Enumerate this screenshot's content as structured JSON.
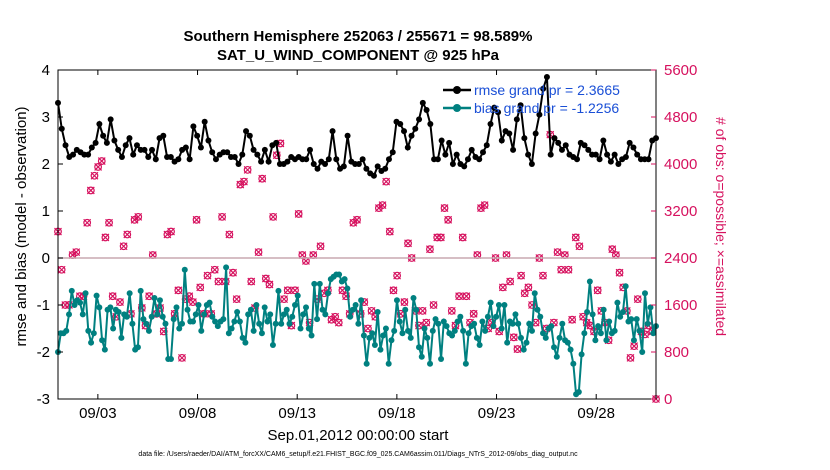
{
  "title_line1": "Southern Hemisphere 252063 / 255671 = 98.589%",
  "title_line2": "SAT_U_WIND_COMPONENT @ 925 hPa",
  "footnote": "data file: /Users/raeder/DAI/ATM_forcXX/CAM6_setup/f.e21.FHIST_BGC.f09_025.CAM6assim.011/Diags_NTrS_2012-09/obs_diag_output.nc",
  "chart_data": {
    "type": "line",
    "xlabel": "Sep.01,2012 00:00:00 start",
    "ylabel_left": "rmse and bias (model - observation)",
    "ylabel_right": "# of obs: o=possible; ×=assimilated",
    "xlim": [
      0,
      30
    ],
    "ylim_left": [
      -3,
      4
    ],
    "ylim_right": [
      0,
      5600
    ],
    "x_ticks": [
      2,
      7,
      12,
      17,
      22,
      27
    ],
    "x_tick_labels": [
      "09/03",
      "09/08",
      "09/13",
      "09/18",
      "09/23",
      "09/28"
    ],
    "y_left_ticks": [
      -3,
      -2,
      -1,
      0,
      1,
      2,
      3,
      4
    ],
    "y_right_ticks": [
      0,
      800,
      1600,
      2400,
      3200,
      4000,
      4800,
      5600
    ],
    "y_right_tick_labels": [
      "0",
      "800",
      "1600",
      "2400",
      "3200",
      "4000",
      "4800",
      "5600"
    ],
    "zero_line": 0,
    "grid": false,
    "legend_position": "top-right",
    "colors": {
      "rmse": "#000000",
      "bias": "#008080",
      "obs": "#d6115e",
      "legend_text": "#1a4fd6",
      "zero_line": "#c8a9b0"
    },
    "series": [
      {
        "name": "rmse grand pr = 2.3665",
        "axis": "left",
        "values": [
          3.3,
          2.75,
          2.4,
          2.15,
          2.2,
          2.3,
          2.25,
          2.2,
          2.2,
          2.35,
          2.45,
          2.85,
          2.6,
          2.45,
          2.95,
          2.5,
          2.3,
          2.15,
          2.4,
          2.55,
          2.2,
          2.4,
          2.3,
          2.3,
          2.15,
          2.3,
          2.1,
          2.55,
          2.6,
          2.15,
          2.15,
          2.05,
          2.1,
          2.3,
          2.35,
          2.1,
          2.8,
          2.6,
          2.35,
          2.9,
          2.5,
          2.25,
          2.1,
          2.2,
          2.25,
          2.25,
          2.15,
          2.15,
          2.0,
          2.2,
          2.7,
          2.6,
          2.3,
          2.2,
          2.05,
          2.3,
          2.05,
          2.4,
          2.45,
          2.0,
          2.0,
          2.05,
          2.15,
          2.1,
          2.15,
          2.1,
          2.1,
          2.3,
          2.0,
          1.9,
          2.05,
          2.0,
          2.1,
          2.7,
          2.1,
          1.9,
          1.95,
          2.6,
          2.05,
          2.0,
          2.0,
          2.1,
          1.9,
          1.8,
          1.75,
          1.95,
          1.85,
          1.9,
          2.1,
          2.25,
          2.9,
          2.85,
          2.7,
          2.35,
          2.6,
          2.75,
          2.95,
          3.3,
          3.15,
          2.85,
          2.1,
          2.1,
          2.5,
          2.2,
          2.45,
          2.0,
          2.2,
          2.0,
          1.95,
          2.1,
          2.3,
          2.15,
          2.1,
          2.25,
          2.4,
          2.85,
          3.2,
          3.1,
          2.5,
          2.7,
          2.65,
          2.3,
          2.95,
          3.25,
          2.55,
          2.2,
          2.0,
          2.65,
          3.05,
          3.6,
          3.85,
          2.2,
          2.55,
          2.45,
          2.3,
          2.4,
          2.2,
          2.15,
          2.1,
          2.45,
          2.4,
          2.3,
          2.2,
          2.2,
          2.1,
          2.5,
          2.2,
          2.05,
          2.2,
          2.0,
          2.1,
          2.15,
          2.45,
          2.35,
          2.2,
          2.1,
          2.1,
          2.1,
          2.5,
          2.55
        ]
      },
      {
        "name": "bias grand pr = -1.2256",
        "axis": "left",
        "values": [
          -2.0,
          -1.6,
          -1.6,
          -1.55,
          -1.2,
          -0.7,
          -1.0,
          -0.9,
          -0.95,
          -1.2,
          -0.75,
          -1.55,
          -1.8,
          -1.6,
          -0.8,
          -1.05,
          -1.75,
          -1.95,
          -1.1,
          -1.05,
          -1.5,
          -1.1,
          -1.15,
          -1.7,
          -1.2,
          -1.25,
          -0.75,
          -1.4,
          -1.95,
          -1.9,
          -0.7,
          -1.3,
          -1.4,
          -1.55,
          -1.25,
          -0.85,
          -1.2,
          -0.9,
          -1.25,
          -1.4,
          -2.15,
          -2.15,
          -1.3,
          -1.05,
          -1.5,
          -1.4,
          -0.25,
          -1.1,
          -1.35,
          -1.35,
          -1.2,
          -1.0,
          -1.55,
          -1.2,
          -1.0,
          -0.95,
          -1.25,
          -1.35,
          -1.45,
          -1.35,
          -1.3,
          -0.2,
          -1.6,
          -1.5,
          -1.35,
          -1.15,
          -1.35,
          -1.7,
          -1.8,
          -1.2,
          -1.1,
          -1.55,
          -1.0,
          -1.4,
          -1.6,
          -1.05,
          -1.35,
          -1.2,
          -1.85,
          -1.4,
          -0.7,
          -1.4,
          -1.2,
          -1.1,
          -1.4,
          -1.25,
          -1.0,
          -0.8,
          -1.5,
          -1.2,
          -1.05,
          -1.5,
          -1.65,
          -0.55,
          -1.3,
          -0.55,
          -1.1,
          -1.2,
          -0.75,
          -0.45,
          -0.4,
          -0.35,
          -0.35,
          -0.5,
          -0.45,
          -0.65,
          -1.25,
          -1.1,
          -1.0,
          -1.4,
          -0.9,
          -1.65,
          -2.25,
          -1.7,
          -1.6,
          -1.85,
          -1.15,
          -1.95,
          -1.65,
          -1.5,
          -2.25,
          -1.75,
          -1.55,
          -0.9,
          -1.35,
          -1.6,
          -1.1,
          -1.55,
          -1.7,
          -0.85,
          -1.1,
          -1.9,
          -2.1,
          -1.5,
          -1.7,
          -2.25,
          -1.55,
          -1.3,
          -1.4,
          -2.15,
          -1.35,
          -1.45,
          -1.6,
          -1.65,
          -1.55,
          -1.35,
          -1.25,
          -1.55,
          -2.25,
          -1.6,
          -1.45,
          -1.4,
          -1.7,
          -1.85,
          -1.35,
          -1.55,
          -1.25,
          -0.95,
          -1.45,
          -1.25,
          -1.0,
          -1.5,
          -1.0,
          -1.8,
          -1.35,
          -1.4,
          -1.2,
          -1.4,
          -1.7,
          -1.95,
          -1.8,
          -1.4,
          -1.55,
          -0.75,
          -1.1,
          -1.25,
          -1.6,
          -1.7,
          -1.5,
          -1.45,
          -1.9,
          -2.1,
          -1.7,
          -1.4,
          -1.75,
          -1.8,
          -1.95,
          -2.25,
          -2.9,
          -2.85,
          -2.05,
          -1.6,
          -1.15,
          -0.5,
          -1.2,
          -1.75,
          -1.45,
          -1.6,
          -1.1,
          -1.75,
          -1.35,
          -1.6,
          -1.55,
          -0.95,
          -1.25,
          -1.15,
          -0.6,
          -1.35,
          -1.3,
          -1.75,
          -1.3,
          -1.55,
          -2.0,
          -0.75,
          -1.4,
          -1.05,
          -1.6,
          -1.45
        ]
      },
      {
        "name": "obs possible / assimilated",
        "axis": "right",
        "values": [
          2850,
          2200,
          1600,
          1600,
          2450,
          2500,
          1750,
          1750,
          3000,
          3550,
          3800,
          3950,
          4050,
          2750,
          3000,
          1750,
          1400,
          1650,
          2600,
          2800,
          1450,
          3050,
          3100,
          1550,
          1250,
          1750,
          2450,
          1450,
          1550,
          1150,
          2800,
          2850,
          1450,
          1850,
          700,
          1700,
          1750,
          1650,
          3050,
          1900,
          1450,
          2100,
          1450,
          2200,
          2000,
          3100,
          2000,
          2800,
          2150,
          1700,
          3650,
          3700,
          3900,
          2000,
          1550,
          2500,
          3750,
          2050,
          1950,
          3100,
          4150,
          4350,
          1700,
          1850,
          1250,
          1850,
          3150,
          2450,
          2350,
          1300,
          2450,
          1700,
          2600,
          1800,
          1850,
          1350,
          1400,
          1300,
          1850,
          1750,
          1450,
          3000,
          3050,
          1450,
          1650,
          1200,
          1500,
          1400,
          3250,
          3300,
          3700,
          2850,
          1850,
          2100,
          1450,
          1650,
          2650,
          2400,
          1500,
          1250,
          1500,
          1300,
          2550,
          1600,
          2750,
          2750,
          3250,
          3050,
          1500,
          1250,
          1750,
          2750,
          1750,
          1300,
          1450,
          2450,
          3250,
          3300,
          1200,
          1300,
          2400,
          1150,
          1900,
          2450,
          2000,
          1050,
          850,
          2100,
          1800,
          1900,
          1600,
          1300,
          2400,
          2100,
          1200,
          4500,
          1300,
          2500,
          2200,
          2450,
          2200,
          1350,
          2750,
          2600,
          1400,
          1300,
          1250,
          1150,
          1850,
          1500,
          1300,
          1000,
          2550,
          2450,
          2150,
          1900,
          1500,
          700,
          900,
          1700,
          1150,
          1100,
          1250,
          1150,
          0
        ]
      }
    ]
  }
}
